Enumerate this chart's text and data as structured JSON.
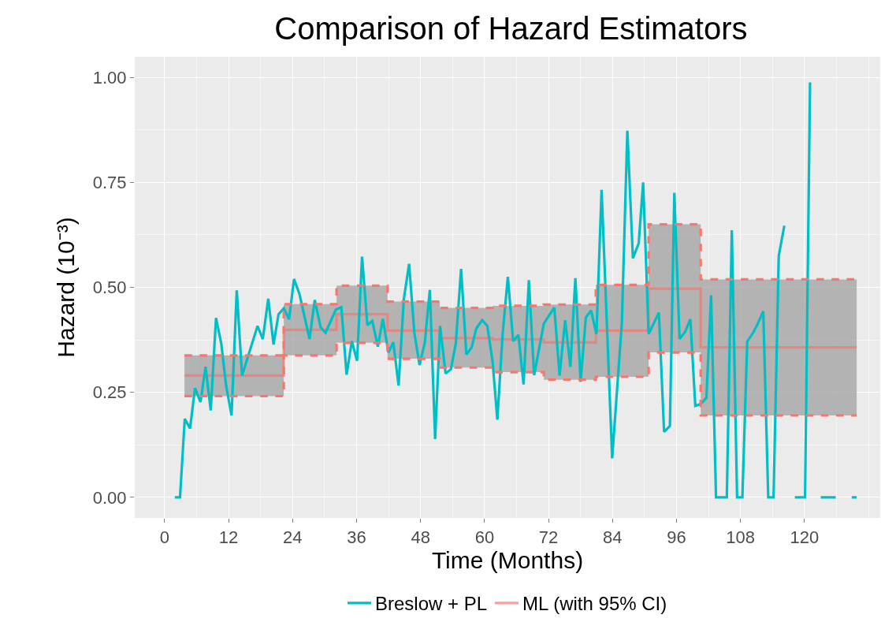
{
  "chart_data": {
    "type": "line",
    "title": "Comparison of Hazard Estimators",
    "xlabel": "Time (Months)",
    "ylabel": "Hazard (10⁻³)",
    "xlim": [
      -5.6,
      134.2
    ],
    "xticks": [
      0,
      12,
      24,
      36,
      48,
      60,
      72,
      84,
      96,
      108,
      120
    ],
    "ylim": [
      -0.049,
      1.049
    ],
    "yticks": [
      {
        "value": 0,
        "label": "0.00"
      },
      {
        "value": 0.25,
        "label": "0.25"
      },
      {
        "value": 0.5,
        "label": "0.50"
      },
      {
        "value": 0.75,
        "label": "0.75"
      },
      {
        "value": 1.0,
        "label": "1.00"
      }
    ],
    "grid": true,
    "legend": "bottom",
    "marker": "none",
    "line_style": "solid",
    "series": [
      {
        "name": "Breslow + PL",
        "color": "#00bfc4",
        "x": [
          1.91,
          2.89,
          3.78,
          4.77,
          5.7,
          6.73,
          7.68,
          8.65,
          9.64,
          10.63,
          11.52,
          12.55,
          13.53,
          14.52,
          17.43,
          18.41,
          19.44,
          20.43,
          21.36,
          22.35,
          23.34,
          24.27,
          25.31,
          27.18,
          28.16,
          29.25,
          30.18,
          32.11,
          33.14,
          34.13,
          35.11,
          36.09,
          37.03,
          38.02,
          38.95,
          39.98,
          40.93,
          41.96,
          42.89,
          43.88,
          44.86,
          45.85,
          46.84,
          47.81,
          48.8,
          49.74,
          50.73,
          51.66,
          52.69,
          53.68,
          54.61,
          55.6,
          56.59,
          57.57,
          58.45,
          59.55,
          60.52,
          61.51,
          62.4,
          63.39,
          64.37,
          65.36,
          66.35,
          67.32,
          68.31,
          69.3,
          71.12,
          73.08,
          74.07,
          75.11,
          76.1,
          77.03,
          78.02,
          78.99,
          79.98,
          80.98,
          81.95,
          83.93,
          85.75,
          86.78,
          87.82,
          88.91,
          89.74,
          90.77,
          92.69,
          93.67,
          94.76,
          95.59,
          96.57,
          97.61,
          98.6,
          99.52,
          100.51,
          101.61,
          102.48,
          103.41,
          105.43,
          106.37,
          107.36,
          108.35,
          109.26,
          110.37,
          111.18,
          112.27,
          113.2,
          114.2,
          115.17,
          116.22,
          117.2,
          118.19,
          120.1,
          121.04,
          122.04,
          123.06,
          125.86,
          126.8,
          128.86,
          129.79
        ],
        "values": [
          0,
          0,
          0.187,
          0.164,
          0.26,
          0.227,
          0.311,
          0.207,
          0.427,
          0.366,
          0.267,
          0.195,
          0.493,
          0.29,
          0.408,
          0.377,
          0.473,
          0.364,
          0.436,
          0.45,
          0.424,
          0.52,
          0.483,
          0.377,
          0.47,
          0.405,
          0.392,
          0.447,
          0.453,
          0.292,
          0.372,
          0.325,
          0.573,
          0.41,
          0.42,
          0.359,
          0.425,
          0.345,
          0.369,
          0.266,
          0.472,
          0.556,
          0.391,
          0.315,
          0.369,
          0.494,
          0.139,
          0.408,
          0.295,
          0.305,
          0.366,
          0.544,
          0.34,
          0.357,
          0.402,
          0.422,
          0.408,
          0.323,
          0.185,
          0.388,
          0.525,
          0.372,
          0.387,
          0.269,
          0.517,
          0.291,
          0.414,
          0.452,
          0.29,
          0.422,
          0.311,
          0.522,
          0.275,
          0.428,
          0.445,
          0.389,
          0.732,
          0.093,
          0.416,
          0.873,
          0.569,
          0.605,
          0.75,
          0.389,
          0.44,
          0.156,
          0.17,
          0.725,
          0.377,
          0.394,
          0.424,
          0.218,
          0.222,
          0.237,
          0.481,
          0,
          0,
          0.636,
          0,
          0,
          0.371,
          0.392,
          0.412,
          0.443,
          0,
          0,
          0.575,
          0.647,
          null,
          0,
          0,
          0.988,
          null,
          0,
          0,
          null,
          0,
          0
        ]
      },
      {
        "name": "ML (with 95% CI)",
        "type": "step",
        "color": "#f8766d",
        "x": [
          3.73,
          22.35,
          32.25,
          41.81,
          51.61,
          61.51,
          71.12,
          80.87,
          90.77,
          100.53,
          129.79
        ],
        "values": [
          0.29,
          0.399,
          0.436,
          0.397,
          0.379,
          0.376,
          0.369,
          0.397,
          0.497,
          0.357,
          0.357
        ],
        "lower": [
          0.241,
          0.338,
          0.368,
          0.33,
          0.309,
          0.298,
          0.28,
          0.287,
          0.345,
          0.195,
          0.195
        ],
        "upper": [
          0.338,
          0.46,
          0.504,
          0.466,
          0.451,
          0.456,
          0.459,
          0.506,
          0.65,
          0.519,
          0.519
        ]
      },
      {
        "type": "step",
        "color": "#f8766d",
        "line_style": "dashed",
        "x": [
          3.73,
          22.35,
          32.25,
          41.81,
          51.61,
          61.51,
          71.12,
          80.87,
          90.77,
          100.53,
          129.79
        ],
        "values": [
          0.241,
          0.338,
          0.368,
          0.33,
          0.309,
          0.298,
          0.28,
          0.287,
          0.345,
          0.195,
          0.195
        ]
      },
      {
        "type": "step",
        "color": "#f8766d",
        "line_style": "dashed",
        "x": [
          3.73,
          22.35,
          32.25,
          41.81,
          51.61,
          61.51,
          71.12,
          80.87,
          90.77,
          100.53,
          129.79
        ],
        "values": [
          0.338,
          0.46,
          0.504,
          0.466,
          0.451,
          0.456,
          0.459,
          0.506,
          0.65,
          0.519,
          0.519
        ]
      }
    ]
  }
}
